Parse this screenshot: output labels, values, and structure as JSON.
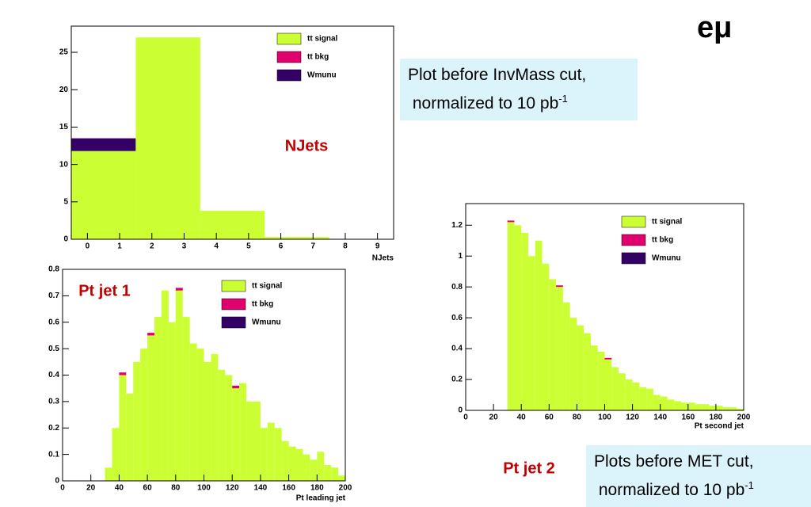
{
  "slide": {
    "title": "eμ",
    "notes": [
      {
        "lines": [
          "Plot before InvMass cut,",
          "normalized to 10 pb"
        ],
        "sup": "-1"
      },
      {
        "lines": [
          "Plots before MET cut,",
          "normalized to 10 pb"
        ],
        "sup": "-1"
      }
    ]
  },
  "chart_data": [
    {
      "type": "histogram",
      "title": "NJets",
      "x_label": "NJets",
      "stacked": true,
      "legend": "top-right",
      "bins": [
        -0.5,
        1.5,
        3.5,
        5.5,
        7.5,
        9.5
      ],
      "series": [
        {
          "name": "tt signal",
          "color": "#ccff33",
          "values": [
            11.8,
            27,
            3.8,
            0.3,
            0
          ]
        },
        {
          "name": "tt bkg",
          "color": "#e0006e",
          "values": [
            0,
            0,
            0,
            0,
            0
          ]
        },
        {
          "name": "Wmunu",
          "color": "#330066",
          "values": [
            1.7,
            0,
            0,
            0,
            0
          ]
        }
      ],
      "xlim": [
        -0.5,
        9.5
      ],
      "xticks": [
        0,
        1,
        2,
        3,
        4,
        5,
        6,
        7,
        8,
        9
      ],
      "ylim": [
        0,
        28.5
      ],
      "yticks": [
        0,
        5,
        10,
        15,
        20,
        25
      ]
    },
    {
      "type": "histogram",
      "title": "Pt jet 1",
      "x_label": "Pt leading jet",
      "stacked": true,
      "legend": "top-right",
      "bins": [
        0,
        5,
        10,
        15,
        20,
        25,
        30,
        35,
        40,
        45,
        50,
        55,
        60,
        65,
        70,
        75,
        80,
        85,
        90,
        95,
        100,
        105,
        110,
        115,
        120,
        125,
        130,
        135,
        140,
        145,
        150,
        155,
        160,
        165,
        170,
        175,
        180,
        185,
        190,
        195,
        200
      ],
      "series": [
        {
          "name": "tt signal",
          "color": "#ccff33",
          "values": [
            0,
            0,
            0,
            0,
            0,
            0,
            0.05,
            0.2,
            0.4,
            0.33,
            0.45,
            0.5,
            0.55,
            0.62,
            0.72,
            0.6,
            0.72,
            0.62,
            0.52,
            0.5,
            0.45,
            0.48,
            0.42,
            0.4,
            0.35,
            0.37,
            0.3,
            0.3,
            0.2,
            0.22,
            0.2,
            0.15,
            0.13,
            0.12,
            0.1,
            0.08,
            0.11,
            0.06,
            0.05,
            0.02
          ]
        },
        {
          "name": "tt bkg",
          "color": "#e0006e",
          "values": [
            0,
            0,
            0,
            0,
            0,
            0,
            0,
            0,
            0.01,
            0,
            0,
            0,
            0.01,
            0,
            0,
            0,
            0.01,
            0,
            0,
            0,
            0,
            0,
            0,
            0,
            0.01,
            0,
            0,
            0,
            0,
            0,
            0,
            0,
            0,
            0,
            0,
            0,
            0,
            0,
            0,
            0
          ]
        },
        {
          "name": "Wmunu",
          "color": "#330066",
          "values": [
            0,
            0,
            0,
            0,
            0,
            0,
            0,
            0,
            0,
            0,
            0,
            0,
            0,
            0,
            0,
            0,
            0,
            0,
            0,
            0,
            0,
            0,
            0,
            0,
            0,
            0,
            0,
            0,
            0,
            0,
            0,
            0,
            0,
            0,
            0,
            0,
            0,
            0,
            0,
            0
          ]
        }
      ],
      "xlim": [
        0,
        200
      ],
      "xticks": [
        0,
        20,
        40,
        60,
        80,
        100,
        120,
        140,
        160,
        180,
        200
      ],
      "ylim": [
        0,
        0.8
      ],
      "yticks": [
        0,
        0.1,
        0.2,
        0.3,
        0.4,
        0.5,
        0.6,
        0.7,
        0.8
      ]
    },
    {
      "type": "histogram",
      "title": "Pt jet 2",
      "x_label": "Pt second jet",
      "stacked": true,
      "legend": "top-right",
      "bins": [
        0,
        5,
        10,
        15,
        20,
        25,
        30,
        35,
        40,
        45,
        50,
        55,
        60,
        65,
        70,
        75,
        80,
        85,
        90,
        95,
        100,
        105,
        110,
        115,
        120,
        125,
        130,
        135,
        140,
        145,
        150,
        155,
        160,
        165,
        170,
        175,
        180,
        185,
        190,
        195,
        200
      ],
      "series": [
        {
          "name": "tt signal",
          "color": "#ccff33",
          "values": [
            0,
            0,
            0,
            0,
            0,
            0,
            1.22,
            1.2,
            1.15,
            1.0,
            1.1,
            0.95,
            0.85,
            0.8,
            0.7,
            0.6,
            0.55,
            0.5,
            0.42,
            0.38,
            0.33,
            0.28,
            0.24,
            0.2,
            0.18,
            0.15,
            0.14,
            0.1,
            0.09,
            0.07,
            0.06,
            0.05,
            0.05,
            0.04,
            0.04,
            0.03,
            0.03,
            0.02,
            0.02,
            0.01
          ]
        },
        {
          "name": "tt bkg",
          "color": "#e0006e",
          "values": [
            0,
            0,
            0,
            0,
            0,
            0,
            0.01,
            0,
            0,
            0,
            0,
            0,
            0,
            0.01,
            0,
            0,
            0,
            0,
            0,
            0,
            0.01,
            0,
            0,
            0,
            0,
            0,
            0,
            0,
            0,
            0,
            0,
            0,
            0,
            0,
            0,
            0,
            0,
            0,
            0,
            0
          ]
        },
        {
          "name": "Wmunu",
          "color": "#330066",
          "values": [
            0,
            0,
            0,
            0,
            0,
            0,
            0,
            0,
            0,
            0,
            0,
            0,
            0,
            0,
            0,
            0,
            0,
            0,
            0,
            0,
            0,
            0,
            0,
            0,
            0,
            0,
            0,
            0,
            0,
            0,
            0,
            0,
            0,
            0,
            0,
            0,
            0,
            0,
            0,
            0
          ]
        }
      ],
      "xlim": [
        0,
        200
      ],
      "xticks": [
        0,
        20,
        40,
        60,
        80,
        100,
        120,
        140,
        160,
        180,
        200
      ],
      "ylim": [
        0,
        1.34
      ],
      "yticks": [
        0,
        0.2,
        0.4,
        0.6,
        0.8,
        1,
        1.2
      ]
    }
  ]
}
